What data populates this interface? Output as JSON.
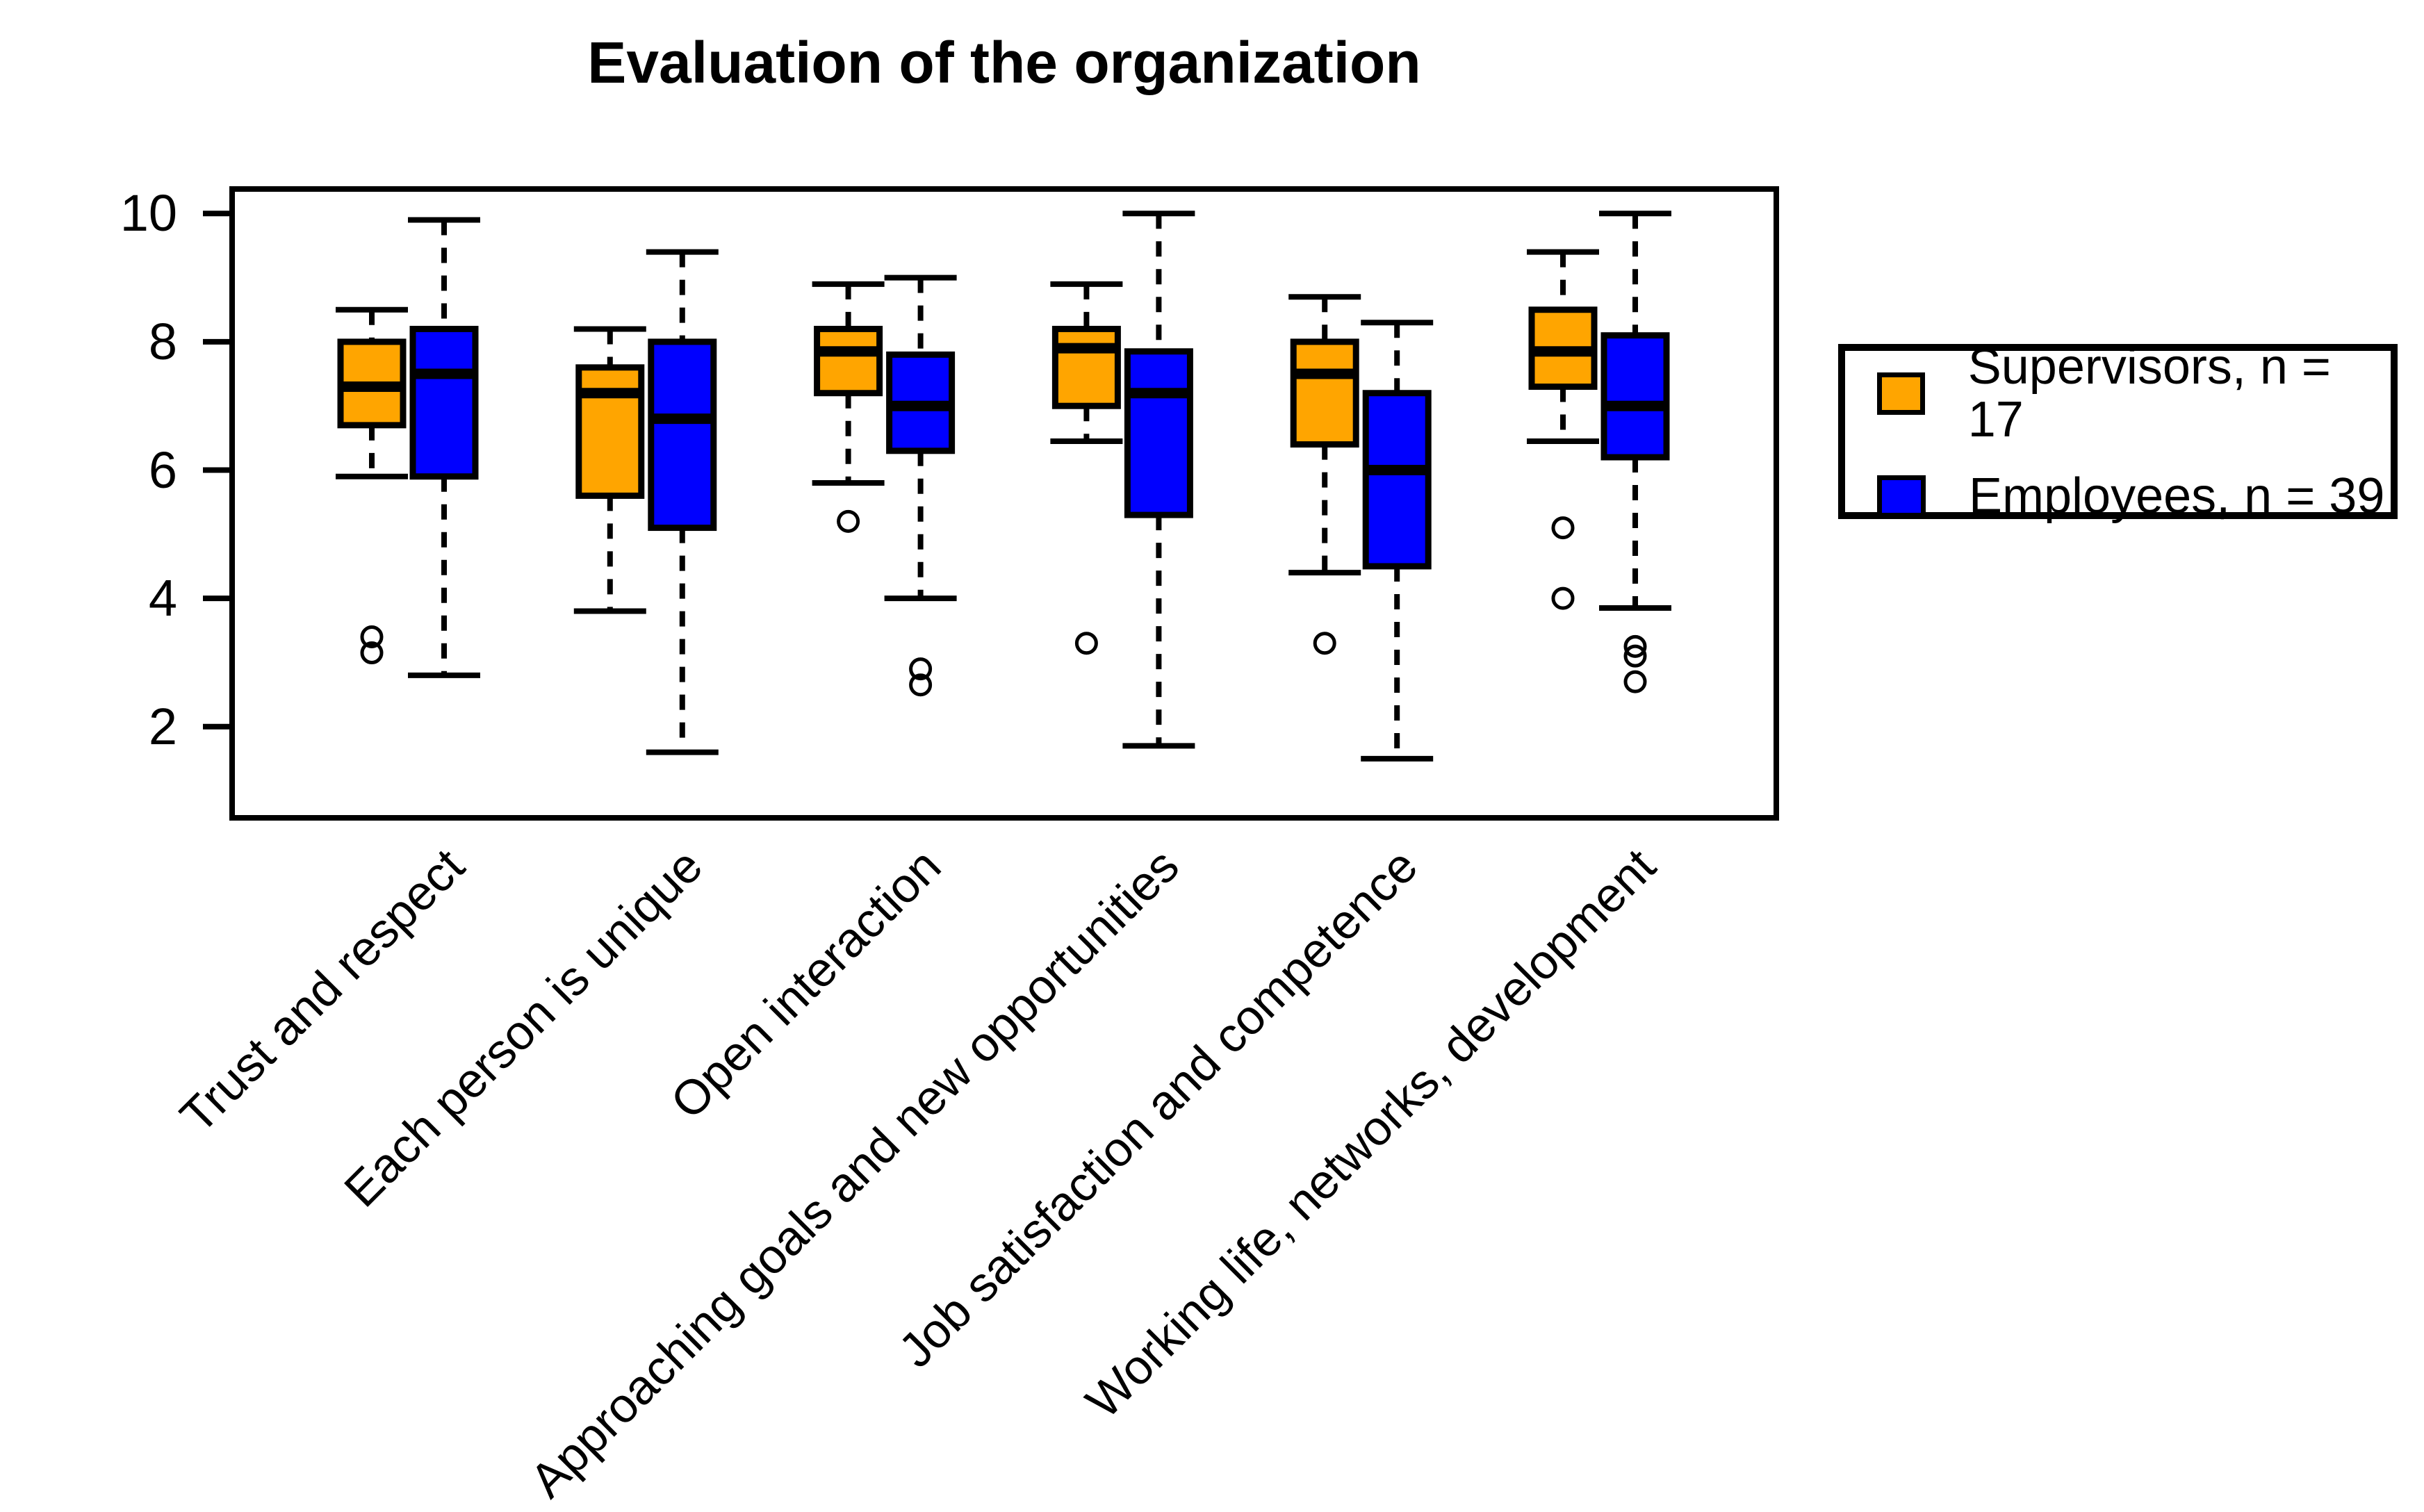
{
  "title": "Evaluation of the organization",
  "colors": {
    "supervisors": "#FFA500",
    "employees": "#0000FF",
    "axis": "#000000",
    "background": "#FFFFFF"
  },
  "legend": {
    "items": [
      {
        "label": "Supervisors, n = 17",
        "color": "#FFA500"
      },
      {
        "label": "Employees, n = 39",
        "color": "#0000FF"
      }
    ]
  },
  "y_axis": {
    "ticks": [
      2,
      4,
      6,
      8,
      10
    ]
  },
  "chart_data": {
    "type": "boxplot",
    "title": "Evaluation of the organization",
    "xlabel": "",
    "ylabel": "",
    "ylim": [
      0.5,
      10.4
    ],
    "yticks": [
      2,
      4,
      6,
      8,
      10
    ],
    "grid": false,
    "legend_position": "right",
    "categories": [
      "Trust and respect",
      "Each person is unique",
      "Open interaction",
      "Approaching goals and new opportunities",
      "Job satisfaction and competence",
      "Working life, networks, development"
    ],
    "series": [
      {
        "name": "Supervisors, n = 17",
        "color": "#FFA500",
        "boxes": [
          {
            "whisker_low": 5.9,
            "q1": 6.7,
            "median": 7.3,
            "q3": 8.0,
            "whisker_high": 8.5,
            "outliers": [
              3.4,
              3.15
            ]
          },
          {
            "whisker_low": 3.8,
            "q1": 5.6,
            "median": 7.2,
            "q3": 7.6,
            "whisker_high": 8.2,
            "outliers": []
          },
          {
            "whisker_low": 5.8,
            "q1": 7.2,
            "median": 7.85,
            "q3": 8.2,
            "whisker_high": 8.9,
            "outliers": [
              5.2
            ]
          },
          {
            "whisker_low": 6.45,
            "q1": 7.0,
            "median": 7.9,
            "q3": 8.2,
            "whisker_high": 8.9,
            "outliers": [
              3.3
            ]
          },
          {
            "whisker_low": 4.4,
            "q1": 6.4,
            "median": 7.5,
            "q3": 8.0,
            "whisker_high": 8.7,
            "outliers": [
              3.3
            ]
          },
          {
            "whisker_low": 6.45,
            "q1": 7.3,
            "median": 7.85,
            "q3": 8.5,
            "whisker_high": 9.4,
            "outliers": [
              5.1,
              4.0
            ]
          }
        ]
      },
      {
        "name": "Employees, n = 39",
        "color": "#0000FF",
        "boxes": [
          {
            "whisker_low": 2.8,
            "q1": 5.9,
            "median": 7.5,
            "q3": 8.2,
            "whisker_high": 9.9,
            "outliers": []
          },
          {
            "whisker_low": 1.6,
            "q1": 5.1,
            "median": 6.8,
            "q3": 8.0,
            "whisker_high": 9.4,
            "outliers": []
          },
          {
            "whisker_low": 4.0,
            "q1": 6.3,
            "median": 7.0,
            "q3": 7.8,
            "whisker_high": 9.0,
            "outliers": [
              2.9,
              2.65
            ]
          },
          {
            "whisker_low": 1.7,
            "q1": 5.3,
            "median": 7.2,
            "q3": 7.85,
            "whisker_high": 10.0,
            "outliers": []
          },
          {
            "whisker_low": 1.5,
            "q1": 4.5,
            "median": 6.0,
            "q3": 7.2,
            "whisker_high": 8.3,
            "outliers": []
          },
          {
            "whisker_low": 3.85,
            "q1": 6.2,
            "median": 7.0,
            "q3": 8.1,
            "whisker_high": 10.0,
            "outliers": [
              3.25,
              3.1,
              2.7
            ]
          }
        ]
      }
    ]
  }
}
